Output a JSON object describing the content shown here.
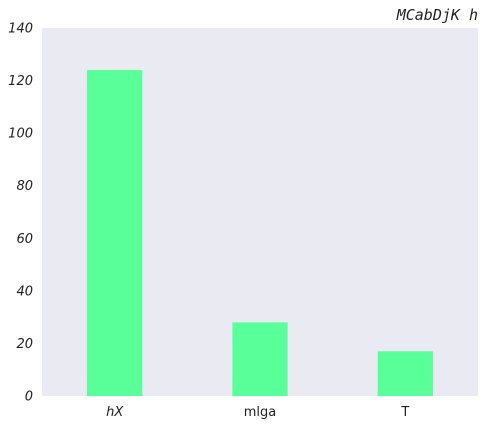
{
  "chart_data": {
    "type": "bar",
    "title": "MCabDjK  h",
    "categories": [
      "hX",
      "mlga",
      "T"
    ],
    "values": [
      124,
      28,
      17
    ],
    "xlabel": "",
    "ylabel": "",
    "ylim": [
      0,
      140
    ],
    "yticks": [
      "0",
      "20",
      "40",
      "60",
      "80",
      "100",
      "120",
      "140"
    ],
    "grid": false,
    "legend": "none",
    "bar_color": "#59ff99",
    "plot_background": "#eaeaf2"
  }
}
